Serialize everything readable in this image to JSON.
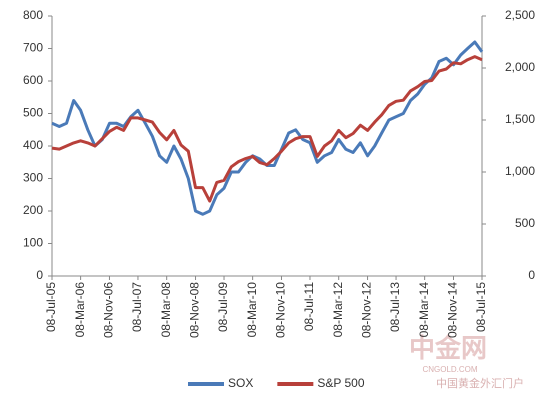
{
  "chart_data": {
    "type": "line",
    "x": [
      "2005-07-08",
      "2005-09-08",
      "2005-11-08",
      "2006-01-08",
      "2006-03-08",
      "2006-05-08",
      "2006-07-08",
      "2006-09-08",
      "2006-11-08",
      "2007-01-08",
      "2007-03-08",
      "2007-05-08",
      "2007-07-08",
      "2007-09-08",
      "2007-11-08",
      "2008-01-08",
      "2008-03-08",
      "2008-05-08",
      "2008-07-08",
      "2008-09-08",
      "2008-11-08",
      "2009-01-08",
      "2009-03-08",
      "2009-05-08",
      "2009-07-08",
      "2009-09-08",
      "2009-11-08",
      "2010-01-08",
      "2010-03-08",
      "2010-05-08",
      "2010-07-08",
      "2010-09-08",
      "2010-11-08",
      "2011-01-08",
      "2011-03-08",
      "2011-05-08",
      "2011-07-08",
      "2011-09-08",
      "2011-11-08",
      "2012-01-08",
      "2012-03-08",
      "2012-05-08",
      "2012-07-08",
      "2012-09-08",
      "2012-11-08",
      "2013-01-08",
      "2013-03-08",
      "2013-05-08",
      "2013-07-08",
      "2013-09-08",
      "2013-11-08",
      "2014-01-08",
      "2014-03-08",
      "2014-05-08",
      "2014-07-08",
      "2014-09-08",
      "2014-11-08",
      "2015-01-08",
      "2015-03-08",
      "2015-05-08",
      "2015-07-08"
    ],
    "series": [
      {
        "name": "SOX",
        "color": "#4a7ab8",
        "values": [
          470,
          460,
          470,
          540,
          510,
          450,
          400,
          420,
          470,
          470,
          460,
          490,
          510,
          470,
          430,
          370,
          350,
          400,
          360,
          300,
          200,
          190,
          200,
          250,
          270,
          320,
          320,
          350,
          370,
          360,
          340,
          340,
          390,
          440,
          450,
          420,
          410,
          350,
          370,
          380,
          420,
          390,
          380,
          410,
          370,
          400,
          440,
          480,
          490,
          500,
          540,
          560,
          590,
          610,
          660,
          670,
          650,
          680,
          700,
          720,
          690
        ]
      },
      {
        "name": "S&P 500",
        "color": "#b8403a",
        "axis": "y2",
        "values": [
          1230,
          1220,
          1250,
          1280,
          1300,
          1280,
          1250,
          1320,
          1390,
          1430,
          1400,
          1520,
          1520,
          1500,
          1480,
          1380,
          1310,
          1400,
          1260,
          1200,
          850,
          850,
          720,
          900,
          920,
          1050,
          1100,
          1130,
          1150,
          1090,
          1070,
          1130,
          1200,
          1280,
          1320,
          1340,
          1340,
          1150,
          1250,
          1300,
          1400,
          1330,
          1370,
          1450,
          1400,
          1480,
          1550,
          1640,
          1680,
          1690,
          1780,
          1820,
          1870,
          1880,
          1970,
          1990,
          2050,
          2040,
          2080,
          2110,
          2080
        ]
      }
    ],
    "xlim": [
      "2005-07-08",
      "2015-07-08"
    ],
    "xticks": [
      {
        "value": "2005-07-08",
        "label": "08-Jul-05"
      },
      {
        "value": "2006-03-08",
        "label": "08-Mar-06"
      },
      {
        "value": "2006-11-08",
        "label": "08-Nov-06"
      },
      {
        "value": "2007-07-08",
        "label": "08-Jul-07"
      },
      {
        "value": "2008-03-08",
        "label": "08-Mar-08"
      },
      {
        "value": "2008-11-08",
        "label": "08-Nov-08"
      },
      {
        "value": "2009-07-08",
        "label": "08-Jul-09"
      },
      {
        "value": "2010-03-08",
        "label": "08-Mar-10"
      },
      {
        "value": "2010-11-08",
        "label": "08-Nov-10"
      },
      {
        "value": "2011-07-08",
        "label": "08-Jul-11"
      },
      {
        "value": "2012-03-08",
        "label": "08-Mar-12"
      },
      {
        "value": "2012-11-08",
        "label": "08-Nov-12"
      },
      {
        "value": "2013-07-08",
        "label": "08-Jul-13"
      },
      {
        "value": "2014-03-08",
        "label": "08-Mar-14"
      },
      {
        "value": "2014-11-08",
        "label": "08-Nov-14"
      },
      {
        "value": "2015-07-08",
        "label": "08-Jul-15"
      }
    ],
    "ylim": [
      0,
      800
    ],
    "yticks": [
      0,
      100,
      200,
      300,
      400,
      500,
      600,
      700,
      800
    ],
    "y2lim": [
      0,
      2500
    ],
    "y2ticks": [
      0,
      500,
      {
        "value": 1000,
        "label": "1,000"
      },
      {
        "value": 1500,
        "label": "1,500"
      },
      {
        "value": 2000,
        "label": "2,000"
      },
      {
        "value": 2500,
        "label": "2,500"
      }
    ],
    "grid": false,
    "watermark": [
      "中金网",
      "CNGOLD.COM",
      "中国黄金外汇门户"
    ]
  }
}
